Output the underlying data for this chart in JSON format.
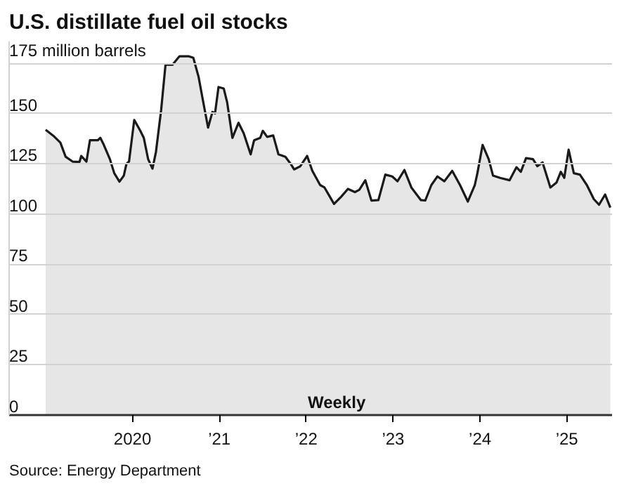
{
  "chart_data": {
    "type": "area",
    "title": "U.S. distillate fuel oil stocks",
    "annotations": [
      "Weekly",
      "Source: Energy Department"
    ],
    "x": [
      2019.0,
      2019.09,
      2019.17,
      2019.23,
      2019.31,
      2019.39,
      2019.41,
      2019.47,
      2019.51,
      2019.6,
      2019.63,
      2019.67,
      2019.74,
      2019.79,
      2019.85,
      2019.9,
      2019.93,
      2019.96,
      2020.02,
      2020.09,
      2020.13,
      2020.18,
      2020.23,
      2020.27,
      2020.33,
      2020.38,
      2020.46,
      2020.54,
      2020.65,
      2020.7,
      2020.76,
      2020.81,
      2020.87,
      2020.92,
      2020.95,
      2020.99,
      2021.05,
      2021.09,
      2021.15,
      2021.22,
      2021.28,
      2021.36,
      2021.4,
      2021.47,
      2021.5,
      2021.55,
      2021.62,
      2021.68,
      2021.76,
      2021.82,
      2021.86,
      2021.93,
      2022.01,
      2022.07,
      2022.16,
      2022.21,
      2022.32,
      2022.4,
      2022.48,
      2022.56,
      2022.61,
      2022.68,
      2022.75,
      2022.83,
      2022.91,
      2022.99,
      2023.05,
      2023.13,
      2023.21,
      2023.32,
      2023.37,
      2023.44,
      2023.51,
      2023.59,
      2023.68,
      2023.77,
      2023.86,
      2023.94,
      2023.97,
      2024.03,
      2024.1,
      2024.15,
      2024.23,
      2024.34,
      2024.42,
      2024.47,
      2024.53,
      2024.61,
      2024.66,
      2024.72,
      2024.81,
      2024.88,
      2024.93,
      2024.97,
      2025.02,
      2025.08,
      2025.15,
      2025.23,
      2025.31,
      2025.37,
      2025.44,
      2025.5
    ],
    "series": [
      {
        "color": "#1a1a1a",
        "values": [
          142,
          139,
          135.6,
          128.6,
          126.2,
          126,
          129,
          126.2,
          136.8,
          136.8,
          138,
          134.5,
          127.4,
          120.4,
          116.2,
          119.2,
          125,
          126.2,
          146.9,
          141.5,
          138,
          127.4,
          122.7,
          131,
          152,
          174.4,
          174.4,
          178.6,
          178.6,
          177.9,
          168.5,
          156.8,
          143.1,
          150.9,
          150.2,
          163.3,
          162.6,
          155.6,
          138,
          145.5,
          140.3,
          129.8,
          136.8,
          138,
          141.5,
          138.5,
          139.2,
          129.8,
          128.6,
          125.1,
          122.3,
          123.8,
          129,
          121.6,
          114.5,
          113.3,
          105.1,
          108.6,
          112.6,
          111,
          112.1,
          116.9,
          106.8,
          107,
          119.7,
          118.8,
          116.4,
          122,
          113.3,
          107,
          106.8,
          114.5,
          118.8,
          116.4,
          121.6,
          114.5,
          106.3,
          114.5,
          120.4,
          134.5,
          127.4,
          119.2,
          118.1,
          116.9,
          123.4,
          121.1,
          127.9,
          127.4,
          123.9,
          125.8,
          113.3,
          115.7,
          121.1,
          118.1,
          132.1,
          120.4,
          119.7,
          114.5,
          107.5,
          104.7,
          109.8,
          103.3
        ]
      }
    ],
    "xlim": [
      2018.58,
      2025.52
    ],
    "ylim": [
      0,
      186
    ],
    "xticks": [
      {
        "value": 2020,
        "label": "2020"
      },
      {
        "value": 2021,
        "label": "’21"
      },
      {
        "value": 2022,
        "label": "’22"
      },
      {
        "value": 2023,
        "label": "’23"
      },
      {
        "value": 2024,
        "label": "’24"
      },
      {
        "value": 2025,
        "label": "’25"
      }
    ],
    "yticks": [
      0,
      25,
      50,
      75,
      100,
      125,
      150,
      {
        "value": 175,
        "label": "175 million barrels"
      }
    ],
    "grid": "y"
  }
}
